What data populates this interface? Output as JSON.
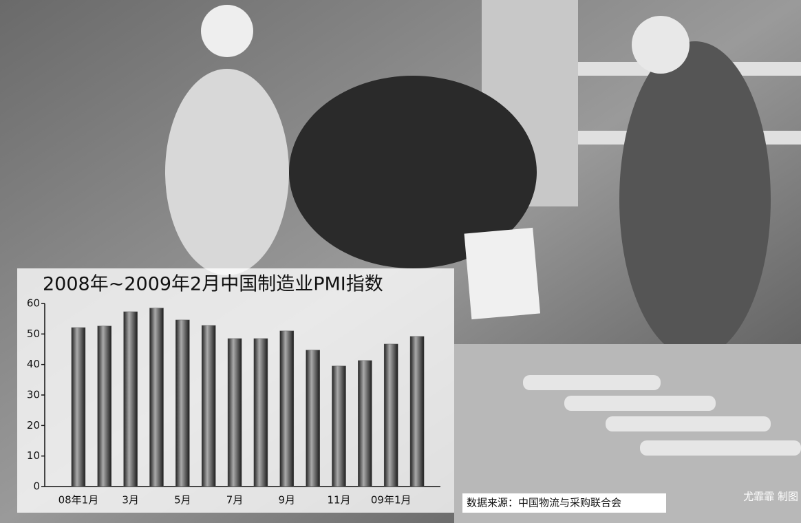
{
  "chart_data": {
    "type": "bar",
    "title": "2008年~2009年2月中国制造业PMI指数",
    "categories": [
      "08年1月",
      null,
      "3月",
      null,
      "5月",
      null,
      "7月",
      null,
      "9月",
      null,
      "11月",
      null,
      "09年1月",
      null
    ],
    "values": [
      52.1,
      52.6,
      57.3,
      58.5,
      54.6,
      52.8,
      48.5,
      48.5,
      51.0,
      44.7,
      39.5,
      41.3,
      46.7,
      49.2
    ],
    "color": "#555555",
    "ylim": [
      0,
      60
    ],
    "yticks": [
      0,
      10,
      20,
      30,
      40,
      50,
      60
    ],
    "grid": false,
    "source": "数据来源：中国物流与采购联合会",
    "credit": "尤霏霏 制图"
  }
}
